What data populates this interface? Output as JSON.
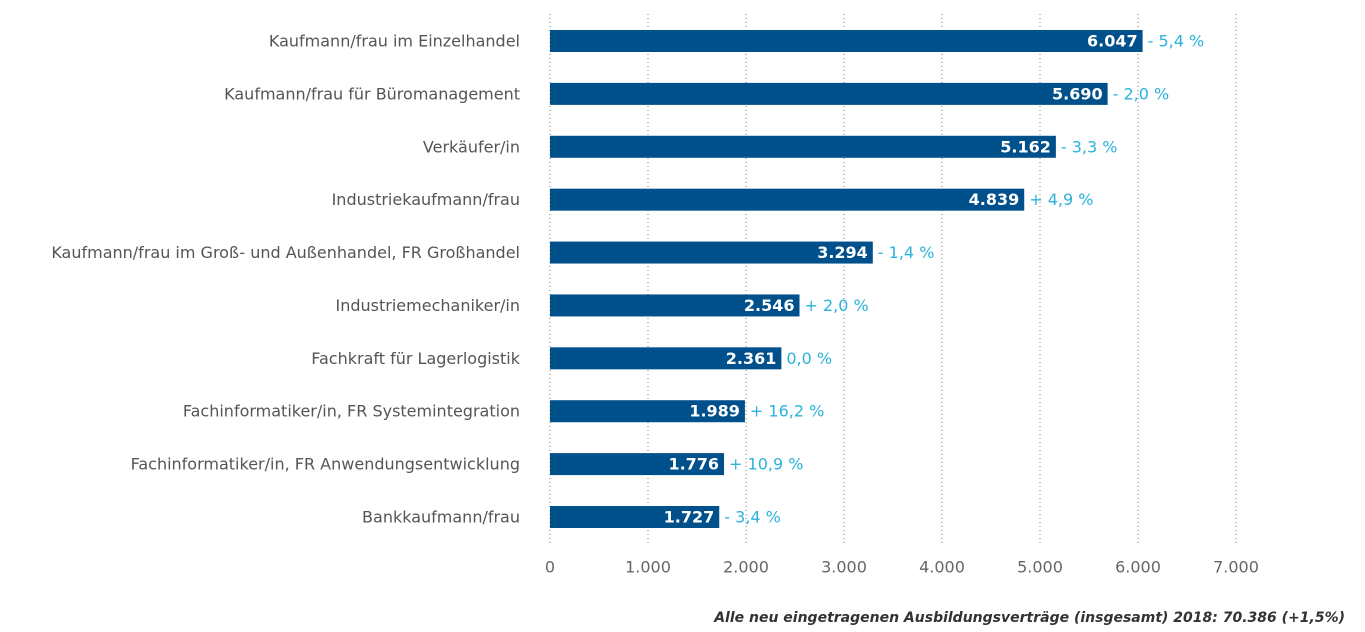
{
  "chart_data": {
    "type": "bar",
    "orientation": "horizontal",
    "categories": [
      "Kaufmann/frau im Einzelhandel",
      "Kaufmann/frau für Büromanagement",
      "Verkäufer/in",
      "Industriekaufmann/frau",
      "Kaufmann/frau im Groß- und Außenhandel, FR Großhandel",
      "Industriemechaniker/in",
      "Fachkraft für Lagerlogistik",
      "Fachinformatiker/in, FR Systemintegration",
      "Fachinformatiker/in, FR Anwendungsentwicklung",
      "Bankkaufmann/frau"
    ],
    "values": [
      6047,
      5690,
      5162,
      4839,
      3294,
      2546,
      2361,
      1989,
      1776,
      1727
    ],
    "value_labels": [
      "6.047",
      "5.690",
      "5.162",
      "4.839",
      "3.294",
      "2.546",
      "2.361",
      "1.989",
      "1.776",
      "1.727"
    ],
    "annotations": [
      "- 5,4 %",
      "- 2,0 %",
      "- 3,3 %",
      "+ 4,9 %",
      "- 1,4 %",
      "+ 2,0 %",
      "0,0 %",
      "+ 16,2 %",
      "+ 10,9 %",
      "- 3,4 %"
    ],
    "color": "#00508c",
    "annotation_color": "#2bb3dc",
    "xlim": [
      0,
      7000
    ],
    "xticks": [
      0,
      {
        "value": 1000,
        "label": "1.000"
      },
      {
        "value": 2000,
        "label": "2.000"
      },
      {
        "value": 3000,
        "label": "3.000"
      },
      {
        "value": 4000,
        "label": "4.000"
      },
      {
        "value": 5000,
        "label": "5.000"
      },
      {
        "value": 6000,
        "label": "6.000"
      },
      {
        "value": 7000,
        "label": "7.000"
      }
    ],
    "grid": true,
    "note": "Alle neu eingetragenen Ausbildungsverträge (insgesamt) 2018: 70.386 (+1,5%)"
  }
}
